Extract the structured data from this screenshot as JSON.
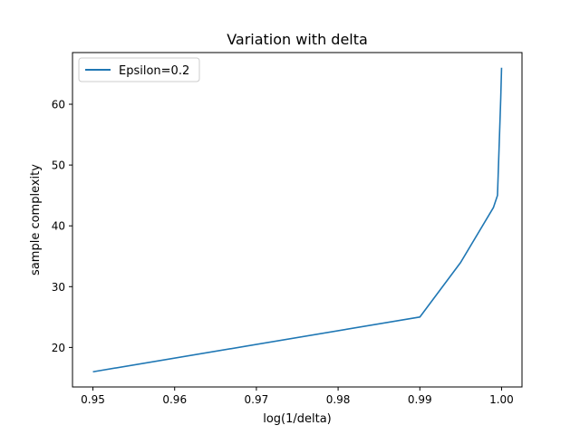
{
  "chart_data": {
    "type": "line",
    "title": "Variation with delta",
    "xlabel": "log(1/delta)",
    "ylabel": "sample complexity",
    "xlim": [
      0.9475,
      1.0025
    ],
    "ylim": [
      13.5,
      68.5
    ],
    "xticks": [
      0.95,
      0.96,
      0.97,
      0.98,
      0.99,
      1.0
    ],
    "xtick_labels": [
      "0.95",
      "0.96",
      "0.97",
      "0.98",
      "0.99",
      "1.00"
    ],
    "yticks": [
      20,
      30,
      40,
      50,
      60
    ],
    "ytick_labels": [
      "20",
      "30",
      "40",
      "50",
      "60"
    ],
    "grid": false,
    "legend_position": "upper left",
    "series": [
      {
        "name": "Epsilon=0.2",
        "color": "#1f77b4",
        "x": [
          0.95,
          0.99,
          0.995,
          0.999,
          0.9995,
          0.9999,
          1.0
        ],
        "y": [
          16,
          25,
          34,
          43,
          45,
          61,
          66
        ]
      }
    ]
  }
}
